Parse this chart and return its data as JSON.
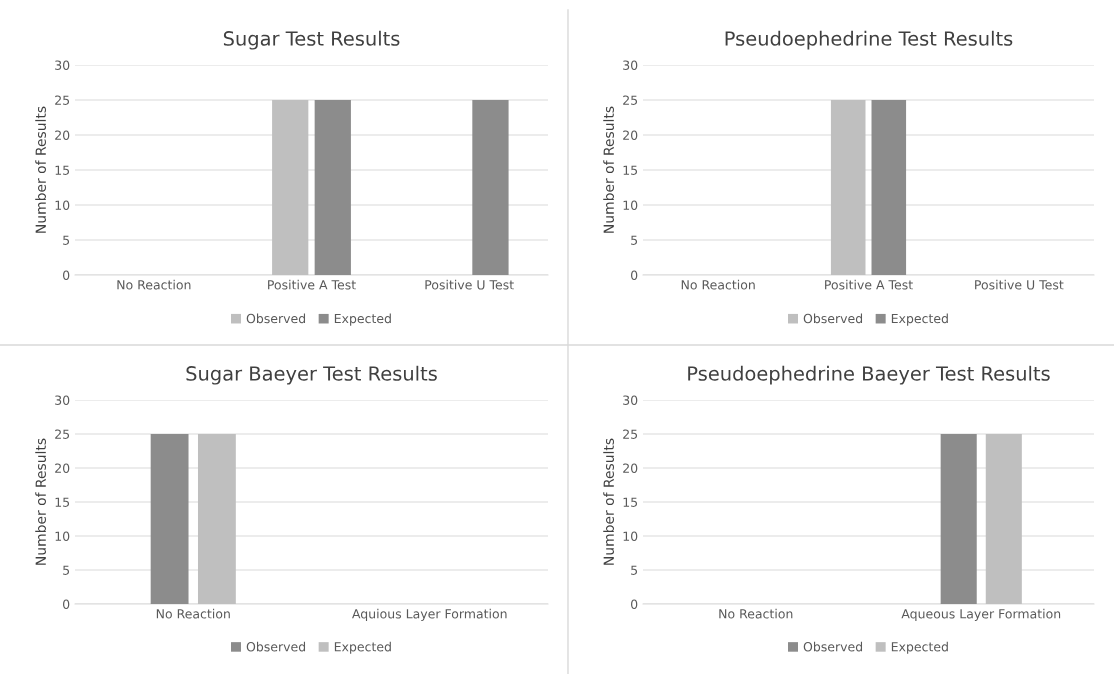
{
  "chart_data": [
    {
      "type": "bar",
      "title": "Sugar Test Results",
      "ylabel": "Number of Results",
      "categories": [
        "No Reaction",
        "Positive A Test",
        "Positive U Test"
      ],
      "ylim": [
        0,
        30
      ],
      "yticks": [
        0,
        5,
        10,
        15,
        20,
        25,
        30
      ],
      "grid": "y",
      "legend": "bottom",
      "series": [
        {
          "name": "Observed",
          "color": "#bfbfbf",
          "values": [
            0,
            25,
            0
          ]
        },
        {
          "name": "Expected",
          "color": "#8c8c8c",
          "values": [
            0,
            25,
            25
          ]
        }
      ]
    },
    {
      "type": "bar",
      "title": "Pseudoephedrine Test Results",
      "ylabel": "Number of Results",
      "categories": [
        "No Reaction",
        "Positive A Test",
        "Positive U Test"
      ],
      "ylim": [
        0,
        30
      ],
      "yticks": [
        0,
        5,
        10,
        15,
        20,
        25,
        30
      ],
      "grid": "y",
      "legend": "bottom",
      "series": [
        {
          "name": "Observed",
          "color": "#bfbfbf",
          "values": [
            0,
            25,
            0
          ]
        },
        {
          "name": "Expected",
          "color": "#8c8c8c",
          "values": [
            0,
            25,
            0
          ]
        }
      ]
    },
    {
      "type": "bar",
      "title": "Sugar Baeyer Test Results",
      "ylabel": "Number of Results",
      "categories": [
        "No Reaction",
        "Aquious Layer Formation"
      ],
      "ylim": [
        0,
        30
      ],
      "yticks": [
        0,
        5,
        10,
        15,
        20,
        25,
        30
      ],
      "grid": "y",
      "legend": "bottom",
      "series": [
        {
          "name": "Observed",
          "color": "#8c8c8c",
          "values": [
            25,
            0
          ]
        },
        {
          "name": "Expected",
          "color": "#bfbfbf",
          "values": [
            25,
            0
          ]
        }
      ]
    },
    {
      "type": "bar",
      "title": "Pseudoephedrine Baeyer Test Results",
      "ylabel": "Number of Results",
      "categories": [
        "No Reaction",
        "Aqueous Layer Formation"
      ],
      "ylim": [
        0,
        30
      ],
      "yticks": [
        0,
        5,
        10,
        15,
        20,
        25,
        30
      ],
      "grid": "y",
      "legend": "bottom",
      "series": [
        {
          "name": "Observed",
          "color": "#8c8c8c",
          "values": [
            0,
            25
          ]
        },
        {
          "name": "Expected",
          "color": "#bfbfbf",
          "values": [
            0,
            25
          ]
        }
      ]
    }
  ]
}
